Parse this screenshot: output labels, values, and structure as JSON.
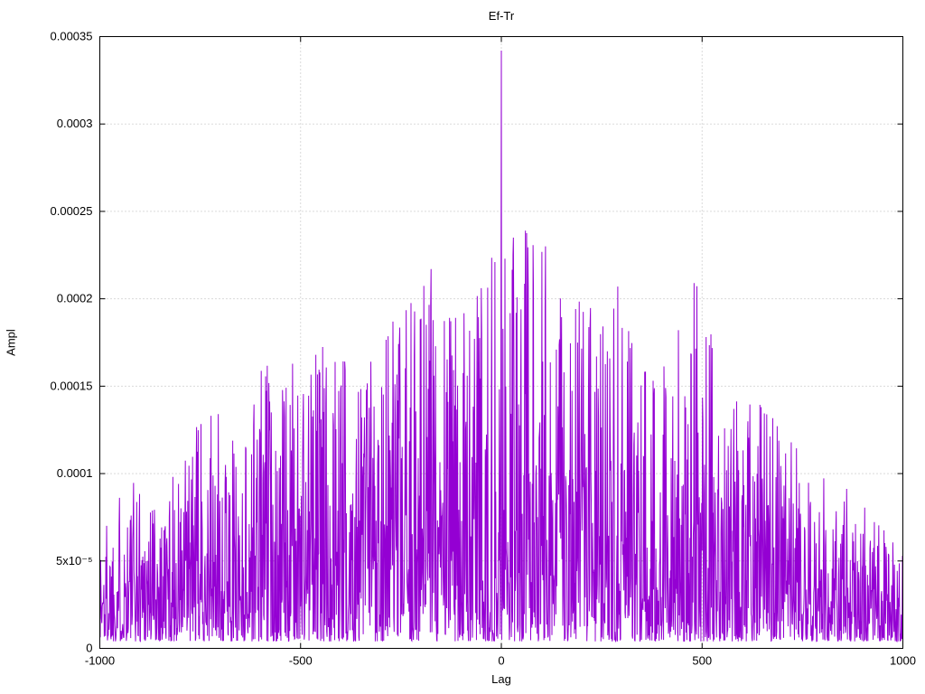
{
  "page": {
    "background": "#ffffff"
  },
  "chart_data": {
    "type": "line",
    "title": "Ef-Tr",
    "xlabel": "Lag",
    "ylabel": "Ampl",
    "xlim": [
      -1000,
      1000
    ],
    "ylim": [
      0,
      0.00035
    ],
    "grid": true,
    "legend_position": "none",
    "line_color": "#9400d3",
    "grid_color": "#b5b5b5",
    "axis_color": "#000000",
    "x_ticks": [
      {
        "value": -1000,
        "label": "-1000"
      },
      {
        "value": -500,
        "label": "-500"
      },
      {
        "value": 0,
        "label": "0"
      },
      {
        "value": 500,
        "label": "500"
      },
      {
        "value": 1000,
        "label": "1000"
      }
    ],
    "y_ticks": [
      {
        "value": 0.0,
        "label": "0"
      },
      {
        "value": 5e-05,
        "label": "5x10⁻⁵"
      },
      {
        "value": 0.0001,
        "label": "0.0001"
      },
      {
        "value": 0.00015,
        "label": "0.00015"
      },
      {
        "value": 0.0002,
        "label": "0.0002"
      },
      {
        "value": 0.00025,
        "label": "0.00025"
      },
      {
        "value": 0.0003,
        "label": "0.0003"
      },
      {
        "value": 0.00035,
        "label": "0.00035"
      }
    ],
    "series": [
      {
        "name": "Ef-Tr",
        "style": "noisy-amplitude-vs-lag",
        "x_start": -1000,
        "x_end": 1000,
        "x_step": 1,
        "main_peak": {
          "x": 0,
          "y": 0.000342
        },
        "secondary_peaks": [
          {
            "x": 60,
            "y": 0.000239
          },
          {
            "x": 30,
            "y": 0.000235
          },
          {
            "x": 110,
            "y": 0.00023
          },
          {
            "x": -175,
            "y": 0.000217
          },
          {
            "x": 480,
            "y": 0.000209
          },
          {
            "x": 290,
            "y": 0.000207
          }
        ],
        "noise_floor": 4e-06,
        "skew_exponent": 2,
        "seed": 1337,
        "noise_envelope": [
          [
            -1000,
            7e-05
          ],
          [
            -950,
            9e-05
          ],
          [
            -900,
            0.0001
          ],
          [
            -850,
            9e-05
          ],
          [
            -800,
            0.0001
          ],
          [
            -750,
            0.00013
          ],
          [
            -700,
            0.00013
          ],
          [
            -650,
            0.00011
          ],
          [
            -600,
            0.00017
          ],
          [
            -550,
            0.00015
          ],
          [
            -500,
            0.000165
          ],
          [
            -450,
            0.00018
          ],
          [
            -400,
            0.00017
          ],
          [
            -350,
            0.000165
          ],
          [
            -300,
            0.000195
          ],
          [
            -250,
            0.00018
          ],
          [
            -200,
            0.000218
          ],
          [
            -150,
            0.00021
          ],
          [
            -100,
            0.00019
          ],
          [
            -50,
            0.000225
          ],
          [
            0,
            0.00022
          ],
          [
            50,
            0.00024
          ],
          [
            100,
            0.000225
          ],
          [
            150,
            0.000195
          ],
          [
            200,
            0.0002
          ],
          [
            250,
            0.000185
          ],
          [
            300,
            0.00021
          ],
          [
            350,
            0.000155
          ],
          [
            400,
            0.000187
          ],
          [
            450,
            0.00019
          ],
          [
            500,
            0.00021
          ],
          [
            550,
            0.00016
          ],
          [
            600,
            0.00014
          ],
          [
            650,
            0.00014
          ],
          [
            700,
            0.00012
          ],
          [
            750,
            0.00012
          ],
          [
            800,
            0.0001
          ],
          [
            850,
            9e-05
          ],
          [
            900,
            8e-05
          ],
          [
            950,
            7e-05
          ],
          [
            1000,
            7e-05
          ]
        ]
      }
    ]
  }
}
